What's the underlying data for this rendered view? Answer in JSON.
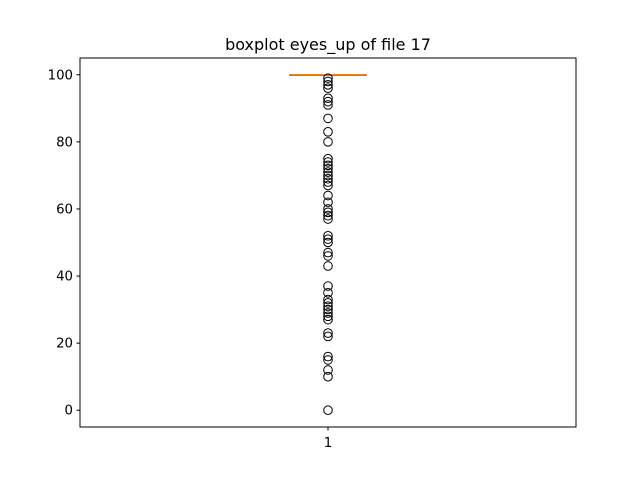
{
  "chart_data": {
    "type": "box",
    "title": "boxplot eyes_up of file 17",
    "xlabel": "",
    "ylabel": "",
    "categories": [
      "1"
    ],
    "ylim": [
      -5,
      105
    ],
    "yticks": [
      0,
      20,
      40,
      60,
      80,
      100
    ],
    "grid": false,
    "series": [
      {
        "name": "",
        "q1": 100,
        "median": 100,
        "q3": 100,
        "whisker_low": 100,
        "whisker_high": 100,
        "outliers": [
          99,
          98,
          97,
          96,
          93,
          92,
          91,
          87,
          83,
          80,
          75,
          74,
          73,
          72,
          71,
          70,
          69,
          68,
          67,
          64,
          62,
          60,
          59,
          58,
          57,
          52,
          51,
          50,
          47,
          46,
          43,
          37,
          35,
          33,
          32,
          31,
          30,
          29,
          28,
          27,
          23,
          22,
          16,
          15,
          12,
          10,
          0
        ]
      }
    ],
    "colors": {
      "box": "#000000",
      "median": "#ff7f0e",
      "outlier": "#000000",
      "axes": "#000000"
    }
  }
}
